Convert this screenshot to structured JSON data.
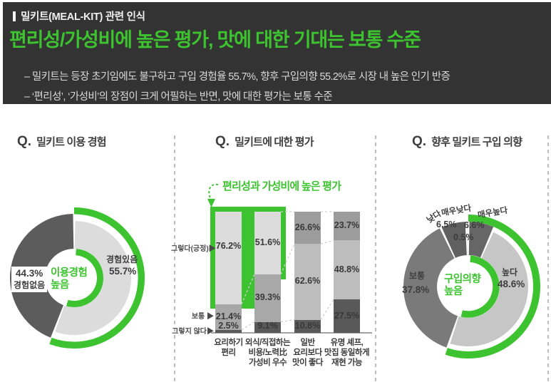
{
  "colors": {
    "green": "#3CC32F",
    "header_bg": "#333333",
    "light_gray": "#DCDCDC",
    "mid_gray": "#A8A8A8",
    "dark_gray": "#595959"
  },
  "header": {
    "kicker": "밀키트(MEAL-KIT) 관련 인식",
    "title": "편리성/가성비에 높은 평가, 맛에 대한 기대는 보통 수준",
    "bullets": [
      "– 밀키트는 등장 초기임에도 불구하고 구입 경험율 55.7%, 향후 구입의향 55.2%로 시장 내 높은 인기 반증",
      "– ‘편리성’, ‘가성비’의 장점이 크게 어필하는 반면, 맛에 대한 평가는 보통 수준"
    ]
  },
  "sections": {
    "usage": {
      "q": "Q.",
      "title": "밀키트 이용 경험"
    },
    "evaluation": {
      "q": "Q.",
      "title": "밀키트에 대한 평가",
      "annotation": "편리성과 가성비에 높은 평가",
      "row_labels": [
        "그렇다(긍정)▶",
        "보통 ▶",
        "그렇지 않다▶"
      ]
    },
    "intent": {
      "q": "Q.",
      "title": "향후 밀키트 구입 의향"
    }
  },
  "chart_data": [
    {
      "type": "pie",
      "variant": "donut",
      "title": "밀키트 이용 경험",
      "segments": [
        {
          "label": "경험있음",
          "value": 55.7,
          "color": "#DCDCDC",
          "highlight": true
        },
        {
          "label": "경험없음",
          "value": 44.3,
          "color": "#5C5C5C"
        }
      ],
      "ring_pct": 55.7,
      "center_label": [
        "이용경험",
        "높음"
      ],
      "legend_position": "inside"
    },
    {
      "type": "bar",
      "variant": "stacked-100",
      "title": "밀키트에 대한 평가",
      "categories": [
        "요리하기 편리",
        "외식/직접하는 비용/노력比 가성비 우수",
        "일반 요리보다 맛이 좋다",
        "유명 셰프, 맛집 동일하게 재현 가능"
      ],
      "cat_lines": [
        [
          "요리하기",
          "편리"
        ],
        [
          "외식/직접하는",
          "비용/노력比",
          "가성비 우수"
        ],
        [
          "일반",
          "요리보다",
          "맛이 좋다"
        ],
        [
          "유명 셰프,",
          "맛집 동일하게",
          "재현 가능"
        ]
      ],
      "series": [
        {
          "name": "그렇다(긍정)",
          "values": [
            76.2,
            51.6,
            26.6,
            23.7
          ]
        },
        {
          "name": "보통",
          "values": [
            21.4,
            39.3,
            62.6,
            48.8
          ]
        },
        {
          "name": "그렇지 않다",
          "values": [
            2.5,
            9.1,
            10.8,
            27.5
          ]
        }
      ],
      "bar_colors": [
        [
          "#DCDCDC",
          "#A8A8A8",
          "#595959"
        ],
        [
          "#DCDCDC",
          "#A8A8A8",
          "#595959"
        ],
        [
          "#9C9C9C",
          "#BDBDBD",
          "#595959"
        ],
        [
          "#9C9C9C",
          "#BDBDBD",
          "#595959"
        ]
      ],
      "highlighted_categories": [
        0,
        1
      ],
      "annotation": "편리성과 가성비에 높은 평가",
      "ylim": [
        0,
        100
      ],
      "grid": false
    },
    {
      "type": "pie",
      "variant": "donut",
      "title": "향후 밀키트 구입 의향",
      "segments": [
        {
          "label": "매우높다",
          "value": 6.6,
          "color": "#666666"
        },
        {
          "label": "높다",
          "value": 48.6,
          "color": "#C6C6C6",
          "highlight": true
        },
        {
          "label": "보통",
          "value": 37.8,
          "color": "#7A7A7A"
        },
        {
          "label": "낮다",
          "value": 6.5,
          "color": "#606060"
        },
        {
          "label": "매우낮다",
          "value": 0.5,
          "color": "#EDEDED"
        }
      ],
      "ring_pct": 55.2,
      "center_label": [
        "구입의향",
        "높음"
      ],
      "legend_position": "inside"
    }
  ]
}
